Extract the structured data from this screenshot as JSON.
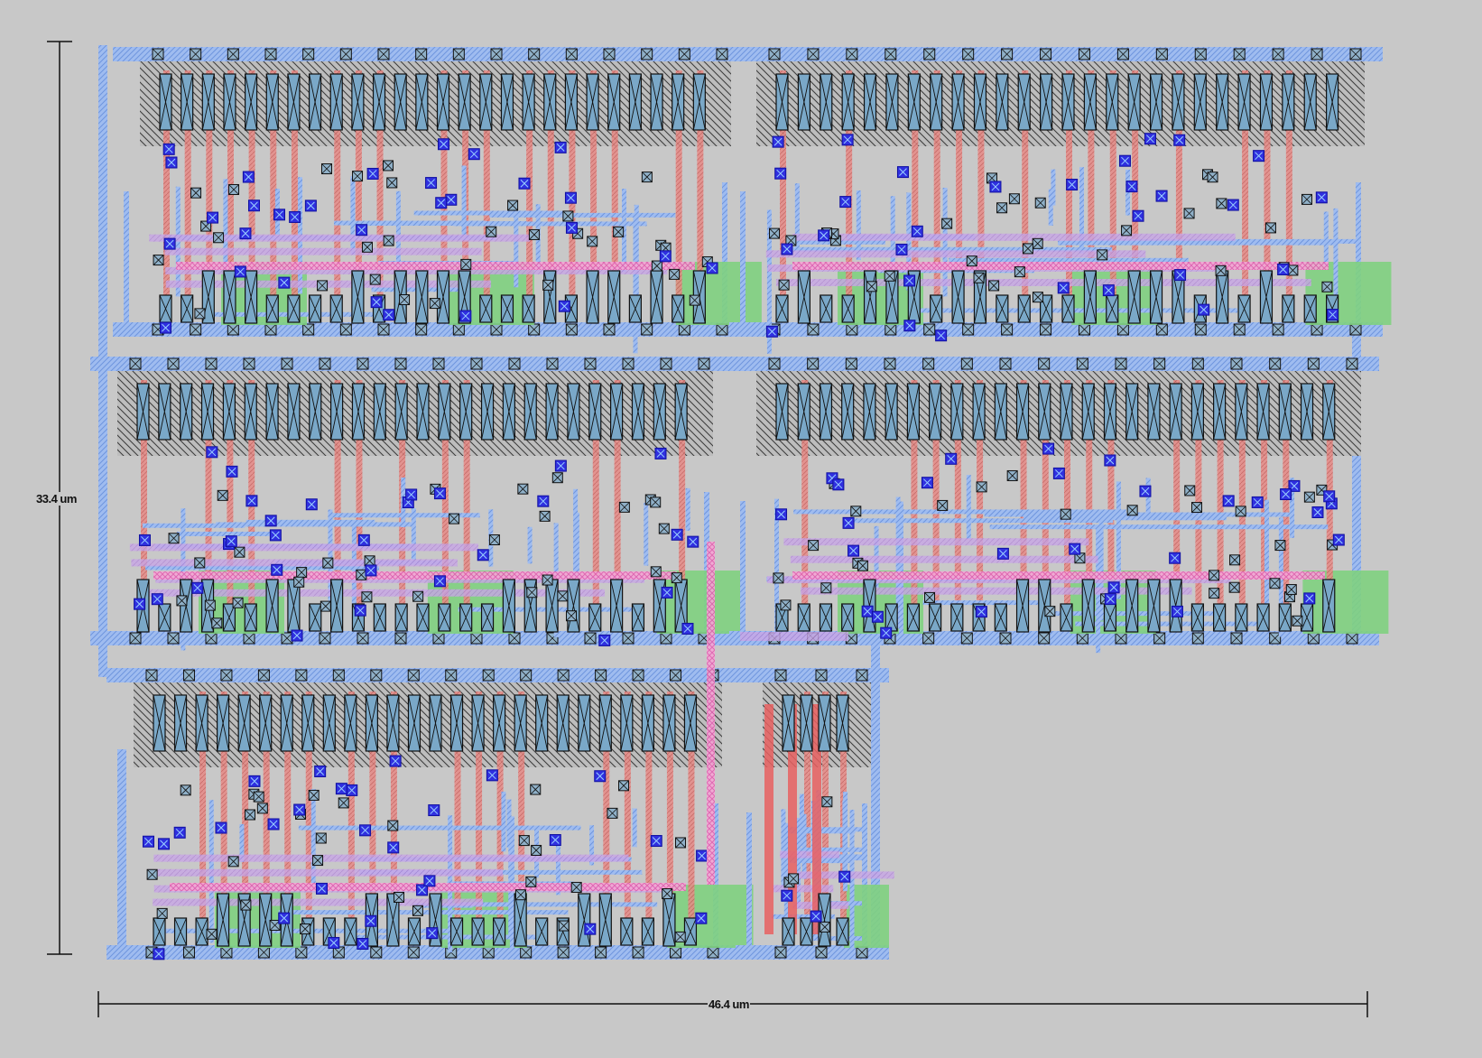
{
  "dimensions": {
    "width_label": "46.4 um",
    "height_label": "33.4 um"
  },
  "colors": {
    "background": "#c8c8c8",
    "metal1": "#99b8f0",
    "metal1_hatch": "#6f95de",
    "poly": "#e8807c",
    "metal2": "#c8a0e0",
    "metal3": "#f090c8",
    "diffusion": "#80d080",
    "nwell_hatch": "#404040",
    "contact_fill": "#7090b8",
    "via": "#3030e0",
    "ruler": "#101010"
  },
  "layout": {
    "rows": [
      {
        "name": "row-1",
        "blocks": [
          "block-1a",
          "block-1b"
        ]
      },
      {
        "name": "row-2",
        "blocks": [
          "block-2a",
          "block-2b"
        ]
      },
      {
        "name": "row-3",
        "blocks": [
          "block-3a",
          "block-3b"
        ]
      }
    ]
  }
}
